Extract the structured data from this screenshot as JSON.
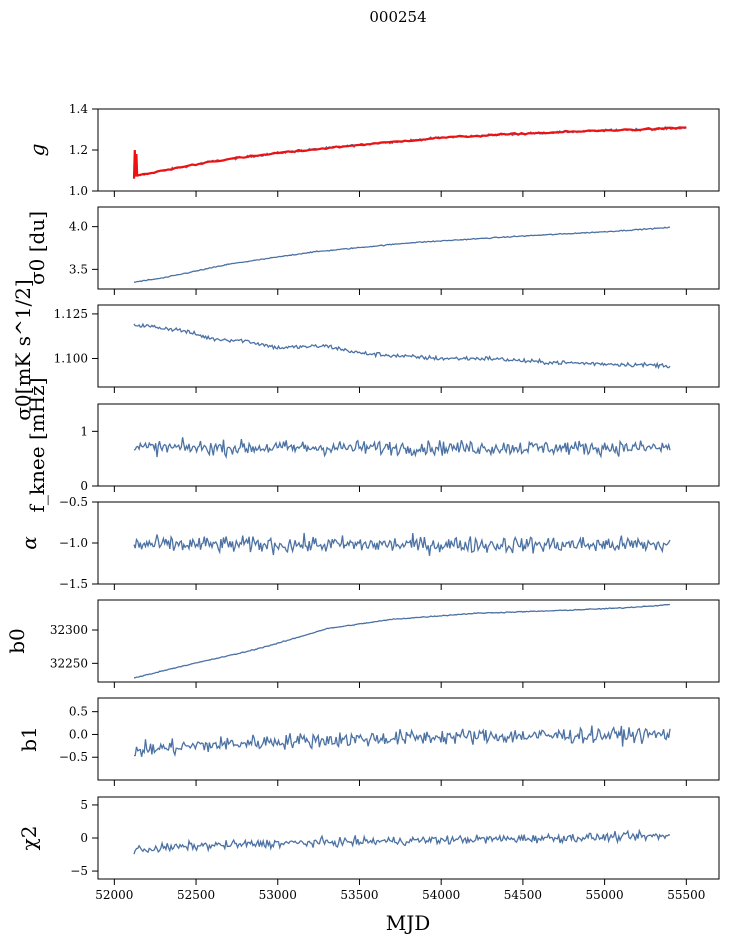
{
  "title": "000254",
  "xlabel": "MJD",
  "colors": {
    "series": "#4c72a4",
    "fit": "#ee1111",
    "axis": "#000000"
  },
  "chart_data": [
    {
      "type": "line",
      "ylabel": "g",
      "xlim": [
        51900,
        55700
      ],
      "ylim": [
        1.0,
        1.4
      ],
      "yticks": [
        1.0,
        1.2,
        1.4
      ],
      "yticklabels": [
        "1.0",
        "1.2",
        "1.4"
      ],
      "trend": [
        [
          52120,
          1.07
        ],
        [
          52300,
          1.1
        ],
        [
          52600,
          1.145
        ],
        [
          53000,
          1.185
        ],
        [
          53500,
          1.225
        ],
        [
          54000,
          1.26
        ],
        [
          54500,
          1.28
        ],
        [
          55000,
          1.295
        ],
        [
          55400,
          1.305
        ],
        [
          55500,
          1.31
        ]
      ],
      "noise": 0.006,
      "overlay": {
        "name": "fit",
        "color": "#ee1111",
        "spike": [
          [
            52120,
            1.06
          ],
          [
            52125,
            1.2
          ],
          [
            52130,
            1.07
          ],
          [
            52135,
            1.18
          ],
          [
            52140,
            1.07
          ]
        ]
      }
    },
    {
      "type": "line",
      "ylabel": "σ0 [du]",
      "xlim": [
        51900,
        55700
      ],
      "ylim": [
        3.27,
        4.23
      ],
      "yticks": [
        3.5,
        4.0
      ],
      "yticklabels": [
        "3.5",
        "4.0"
      ],
      "trend": [
        [
          52120,
          3.35
        ],
        [
          52300,
          3.4
        ],
        [
          52700,
          3.56
        ],
        [
          53200,
          3.7
        ],
        [
          53800,
          3.81
        ],
        [
          54500,
          3.89
        ],
        [
          55000,
          3.94
        ],
        [
          55400,
          3.99
        ]
      ],
      "noise": 0.006
    },
    {
      "type": "line",
      "ylabel": "σ0[mK s^1/2]",
      "xlim": [
        51900,
        55700
      ],
      "ylim": [
        1.084,
        1.13
      ],
      "yticks": [
        1.1,
        1.125
      ],
      "yticklabels": [
        "1.100",
        "1.125"
      ],
      "trend": [
        [
          52120,
          1.119
        ],
        [
          52400,
          1.116
        ],
        [
          52600,
          1.111
        ],
        [
          52800,
          1.11
        ],
        [
          53000,
          1.106
        ],
        [
          53300,
          1.107
        ],
        [
          53500,
          1.103
        ],
        [
          53800,
          1.101
        ],
        [
          54000,
          1.1
        ],
        [
          54300,
          1.1
        ],
        [
          54600,
          1.098
        ],
        [
          55000,
          1.097
        ],
        [
          55400,
          1.096
        ]
      ],
      "noise": 0.0012
    },
    {
      "type": "line",
      "ylabel": "f_knee [mHz]",
      "xlim": [
        51900,
        55700
      ],
      "ylim": [
        0,
        1.5
      ],
      "yticks": [
        0,
        1
      ],
      "yticklabels": [
        "0",
        "1"
      ],
      "trend": [
        [
          52120,
          0.7
        ],
        [
          55400,
          0.7
        ]
      ],
      "noise": 0.13
    },
    {
      "type": "line",
      "ylabel": "α",
      "xlim": [
        51900,
        55700
      ],
      "ylim": [
        -1.5,
        -0.5
      ],
      "yticks": [
        -1.5,
        -1.0,
        -0.5
      ],
      "yticklabels": [
        "−1.5",
        "−1.0",
        "−0.5"
      ],
      "trend": [
        [
          52120,
          -1.02
        ],
        [
          55400,
          -1.02
        ]
      ],
      "noise": 0.1
    },
    {
      "type": "line",
      "ylabel": "b0",
      "xlim": [
        51900,
        55700
      ],
      "ylim": [
        32222,
        32345
      ],
      "yticks": [
        32250,
        32300
      ],
      "yticklabels": [
        "32250",
        "32300"
      ],
      "trend": [
        [
          52120,
          32228
        ],
        [
          52400,
          32245
        ],
        [
          52800,
          32267
        ],
        [
          53000,
          32280
        ],
        [
          53300,
          32302
        ],
        [
          53700,
          32316
        ],
        [
          54200,
          32325
        ],
        [
          54700,
          32329
        ],
        [
          55100,
          32333
        ],
        [
          55400,
          32338
        ]
      ],
      "noise": 0.7
    },
    {
      "type": "line",
      "ylabel": "b1",
      "xlim": [
        51900,
        55700
      ],
      "ylim": [
        -1.0,
        0.8
      ],
      "yticks": [
        -0.5,
        0.0,
        0.5
      ],
      "yticklabels": [
        "−0.5",
        "0.0",
        "0.5"
      ],
      "trend": [
        [
          52120,
          -0.35
        ],
        [
          52500,
          -0.25
        ],
        [
          53000,
          -0.15
        ],
        [
          54000,
          -0.05
        ],
        [
          55400,
          0.0
        ]
      ],
      "noise": 0.17
    },
    {
      "type": "line",
      "ylabel": "χ2",
      "xlim": [
        51900,
        55700
      ],
      "ylim": [
        -6.2,
        6.2
      ],
      "yticks": [
        -5,
        0,
        5
      ],
      "yticklabels": [
        "−5",
        "0",
        "5"
      ],
      "trend": [
        [
          52120,
          -1.8
        ],
        [
          52500,
          -1.2
        ],
        [
          53000,
          -0.8
        ],
        [
          54000,
          -0.3
        ],
        [
          55400,
          0.3
        ]
      ],
      "noise": 0.65
    }
  ],
  "xaxis": {
    "ticks": [
      52000,
      52500,
      53000,
      53500,
      54000,
      54500,
      55000,
      55500
    ],
    "ticklabels": [
      "52000",
      "52500",
      "53000",
      "53500",
      "54000",
      "54500",
      "55000",
      "55500"
    ]
  }
}
